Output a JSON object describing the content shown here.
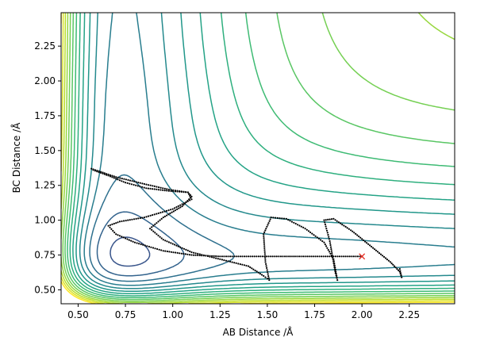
{
  "chart_data": {
    "type": "line",
    "title": "",
    "xlabel": "AB Distance /Å",
    "ylabel": "BC Distance /Å",
    "xlim": [
      0.41,
      2.49
    ],
    "ylim": [
      0.4,
      2.49
    ],
    "xticks": [
      "0.50",
      "0.75",
      "1.00",
      "1.25",
      "1.50",
      "1.75",
      "2.00",
      "2.25"
    ],
    "yticks": [
      "0.50",
      "0.75",
      "1.00",
      "1.25",
      "1.50",
      "1.75",
      "2.00",
      "2.25"
    ],
    "grid": false,
    "legend": "none",
    "background": {
      "kind": "contour",
      "colormap": "viridis",
      "levels": 20
    },
    "series": [
      {
        "kind": "trajectory",
        "marker": "dot",
        "color": "#000000",
        "x": [
          2.0,
          1.85,
          1.7,
          1.55,
          1.4,
          1.25,
          1.1,
          0.95,
          0.8,
          0.7,
          0.66,
          0.72,
          0.85,
          1.0,
          1.1,
          1.08,
          0.98,
          0.86,
          0.75,
          0.66,
          0.58,
          0.57,
          0.7,
          0.85,
          0.98,
          1.08,
          1.1,
          1.05,
          0.95,
          0.88,
          0.95,
          1.1,
          1.25,
          1.4,
          1.48,
          1.51,
          1.49,
          1.48,
          1.52,
          1.6,
          1.7,
          1.8,
          1.85,
          1.87,
          1.86,
          1.83,
          1.8,
          1.85,
          1.95,
          2.05,
          2.15,
          2.2,
          2.21,
          2.2
        ],
        "y": [
          0.74,
          0.74,
          0.74,
          0.74,
          0.74,
          0.74,
          0.75,
          0.78,
          0.84,
          0.9,
          0.96,
          0.99,
          1.02,
          1.08,
          1.15,
          1.2,
          1.21,
          1.23,
          1.27,
          1.32,
          1.36,
          1.37,
          1.31,
          1.26,
          1.22,
          1.2,
          1.17,
          1.1,
          1.02,
          0.94,
          0.86,
          0.77,
          0.72,
          0.67,
          0.6,
          0.57,
          0.7,
          0.9,
          1.02,
          1.01,
          0.94,
          0.84,
          0.72,
          0.57,
          0.62,
          0.85,
          1.0,
          1.01,
          0.92,
          0.81,
          0.7,
          0.63,
          0.59,
          0.65
        ]
      },
      {
        "kind": "marker",
        "marker": "x",
        "color": "#e8281e",
        "x": [
          2.0
        ],
        "y": [
          0.74
        ]
      }
    ]
  }
}
